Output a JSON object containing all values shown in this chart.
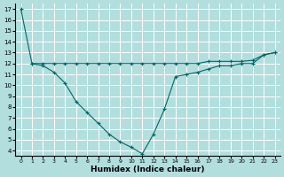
{
  "xlabel": "Humidex (Indice chaleur)",
  "ylabel": "",
  "background_color": "#b2dede",
  "grid_color": "#ffffff",
  "line_color": "#006666",
  "marker_color": "#006666",
  "xlim": [
    -0.5,
    23.5
  ],
  "ylim": [
    3.5,
    17.5
  ],
  "yticks": [
    4,
    5,
    6,
    7,
    8,
    9,
    10,
    11,
    12,
    13,
    14,
    15,
    16,
    17
  ],
  "xticks": [
    0,
    1,
    2,
    3,
    4,
    5,
    6,
    7,
    8,
    9,
    10,
    11,
    12,
    13,
    14,
    15,
    16,
    17,
    18,
    19,
    20,
    21,
    22,
    23
  ],
  "series1_x": [
    0,
    1,
    2,
    3,
    4,
    5,
    6,
    7,
    8,
    9,
    10,
    11,
    12,
    13,
    14,
    15,
    16,
    17,
    18,
    19,
    20,
    21,
    22,
    23
  ],
  "series1_y": [
    17.0,
    12.0,
    11.8,
    11.2,
    10.2,
    8.5,
    7.5,
    6.5,
    5.5,
    4.8,
    4.3,
    3.7,
    5.5,
    7.8,
    10.8,
    11.0,
    11.2,
    11.5,
    11.8,
    11.8,
    12.0,
    12.0,
    12.8,
    13.0
  ],
  "series2_x": [
    1,
    2,
    3,
    4,
    5,
    6,
    7,
    8,
    9,
    10,
    11,
    12,
    13,
    14,
    15,
    16,
    17,
    18,
    19,
    20,
    21,
    22,
    23
  ],
  "series2_y": [
    12.0,
    12.0,
    12.0,
    12.0,
    12.0,
    12.0,
    12.0,
    12.0,
    12.0,
    12.0,
    12.0,
    12.0,
    12.0,
    12.0,
    12.0,
    12.0,
    12.2,
    12.2,
    12.2,
    12.2,
    12.3,
    12.8,
    13.0
  ]
}
